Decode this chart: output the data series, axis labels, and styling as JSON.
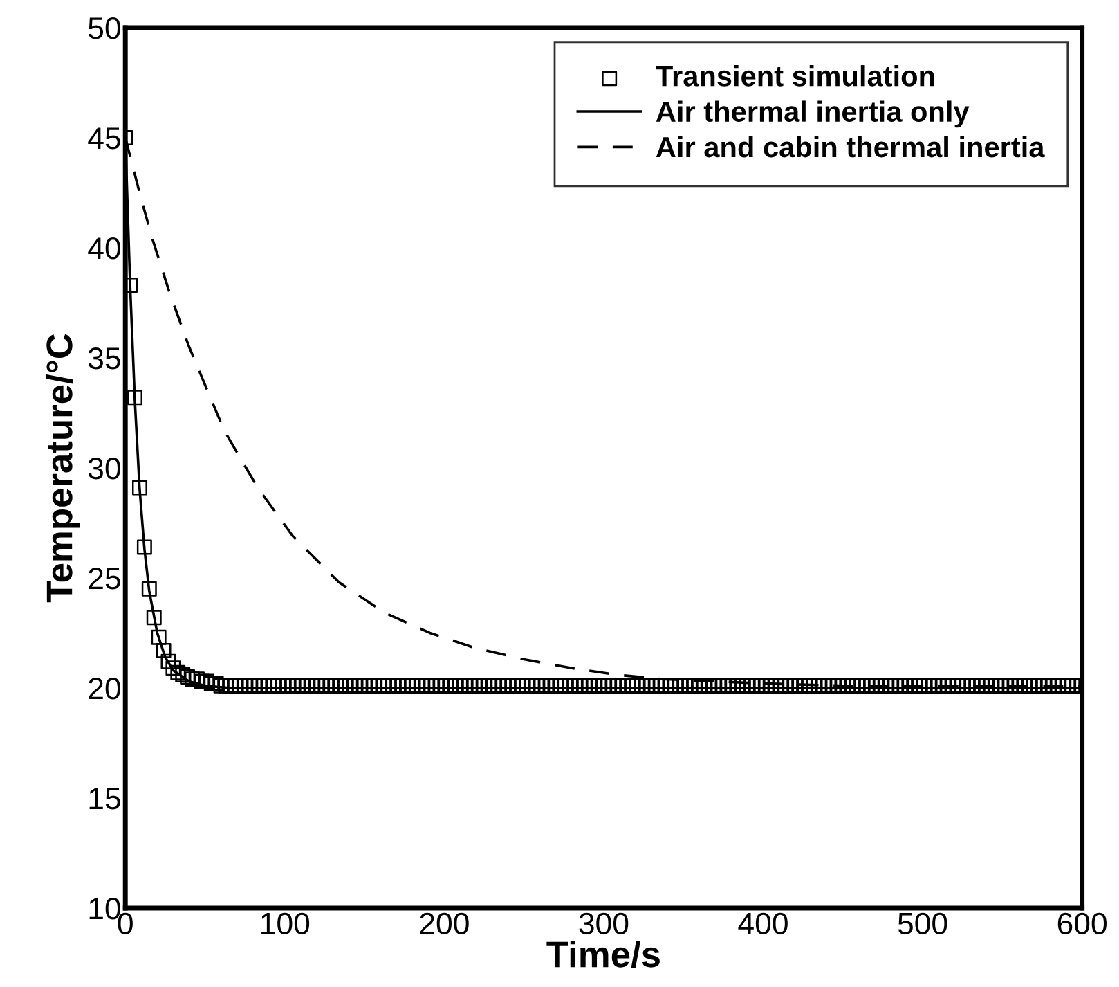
{
  "chart_data": {
    "type": "line",
    "xlabel": "Time/s",
    "ylabel": "Temperature/°C",
    "xlim": [
      0,
      600
    ],
    "xticks": [
      0,
      100,
      200,
      300,
      400,
      500,
      600
    ],
    "ylim": [
      10,
      50
    ],
    "yticks": [
      10,
      15,
      20,
      25,
      30,
      35,
      40,
      45,
      50
    ],
    "grid": false,
    "legend": "top right",
    "series": [
      {
        "name": "Transient simulation",
        "type": "scatter",
        "marker": "square",
        "color": "#000000",
        "x": [
          0,
          3,
          6,
          9,
          12,
          15,
          18,
          21,
          24,
          27,
          30,
          33,
          36,
          39,
          42,
          45,
          48,
          51,
          54,
          57,
          60,
          63,
          66,
          69,
          72,
          75,
          78,
          81,
          84,
          87,
          90,
          93,
          96,
          99,
          102,
          105,
          108,
          111,
          114,
          117,
          120,
          123,
          126,
          129,
          132,
          135,
          138,
          141,
          144,
          147,
          150,
          153,
          156,
          159,
          162,
          165,
          168,
          171,
          174,
          177,
          180,
          183,
          186,
          189,
          192,
          195,
          198,
          201,
          204,
          207,
          210,
          213,
          216,
          219,
          222,
          225,
          228,
          231,
          234,
          237,
          240,
          243,
          246,
          249,
          252,
          255,
          258,
          261,
          264,
          267,
          270,
          273,
          276,
          279,
          282,
          285,
          288,
          291,
          294,
          297,
          300,
          303,
          306,
          309,
          312,
          315,
          318,
          321,
          324,
          327,
          330,
          333,
          336,
          339,
          342,
          345,
          348,
          351,
          354,
          357,
          360,
          363,
          366,
          369,
          372,
          375,
          378,
          381,
          384,
          387,
          390,
          393,
          396,
          399,
          402,
          405,
          408,
          411,
          414,
          417,
          420,
          423,
          426,
          429,
          432,
          435,
          438,
          441,
          444,
          447,
          450,
          453,
          456,
          459,
          462,
          465,
          468,
          471,
          474,
          477,
          480,
          483,
          486,
          489,
          492,
          495,
          498,
          501,
          504,
          507,
          510,
          513,
          516,
          519,
          522,
          525,
          528,
          531,
          534,
          537,
          540,
          543,
          546,
          549,
          552,
          555,
          558,
          561,
          564,
          567,
          570,
          573,
          576,
          579,
          582,
          585,
          588,
          591,
          594,
          597,
          600
        ],
        "values": [
          45,
          38.3,
          33.2,
          29.1,
          26.4,
          24.5,
          23.2,
          22.3,
          21.7,
          21.2,
          20.9,
          20.7,
          20.6,
          20.5,
          20.4,
          20.4,
          20.3,
          20.3,
          20.2,
          20.2,
          20.1,
          20.1,
          20.1,
          20.1,
          20.1,
          20.1,
          20.1,
          20.1,
          20.1,
          20.1,
          20.1,
          20.1,
          20.1,
          20.1,
          20.1,
          20.1,
          20.1,
          20.1,
          20.1,
          20.1,
          20.1,
          20.1,
          20.1,
          20.1,
          20.1,
          20.1,
          20.1,
          20.1,
          20.1,
          20.1,
          20.1,
          20.1,
          20.1,
          20.1,
          20.1,
          20.1,
          20.1,
          20.1,
          20.1,
          20.1,
          20.1,
          20.1,
          20.1,
          20.1,
          20.1,
          20.1,
          20.1,
          20.1,
          20.1,
          20.1,
          20.1,
          20.1,
          20.1,
          20.1,
          20.1,
          20.1,
          20.1,
          20.1,
          20.1,
          20.1,
          20.1,
          20.1,
          20.1,
          20.1,
          20.1,
          20.1,
          20.1,
          20.1,
          20.1,
          20.1,
          20.1,
          20.1,
          20.1,
          20.1,
          20.1,
          20.1,
          20.1,
          20.1,
          20.1,
          20.1,
          20.1,
          20.1,
          20.1,
          20.1,
          20.1,
          20.1,
          20.1,
          20.1,
          20.1,
          20.1,
          20.1,
          20.1,
          20.1,
          20.1,
          20.1,
          20.1,
          20.1,
          20.1,
          20.1,
          20.1,
          20.1,
          20.1,
          20.1,
          20.1,
          20.1,
          20.1,
          20.1,
          20.1,
          20.1,
          20.1,
          20.1,
          20.1,
          20.1,
          20.1,
          20.1,
          20.1,
          20.1,
          20.1,
          20.1,
          20.1,
          20.1,
          20.1,
          20.1,
          20.1,
          20.1,
          20.1,
          20.1,
          20.1,
          20.1,
          20.1,
          20.1,
          20.1,
          20.1,
          20.1,
          20.1,
          20.1,
          20.1,
          20.1,
          20.1,
          20.1,
          20.1,
          20.1,
          20.1,
          20.1,
          20.1,
          20.1,
          20.1,
          20.1,
          20.1,
          20.1,
          20.1,
          20.1,
          20.1,
          20.1,
          20.1,
          20.1,
          20.1,
          20.1,
          20.1,
          20.1,
          20.1,
          20.1,
          20.1,
          20.1,
          20.1,
          20.1,
          20.1,
          20.1,
          20.1,
          20.1,
          20.1,
          20.1,
          20.1,
          20.1,
          20.1,
          20.1,
          20.1,
          20.1,
          20.1,
          20.1,
          20.1
        ]
      },
      {
        "name": "Air thermal inertia only",
        "type": "line",
        "line_style": "solid",
        "color": "#000000",
        "x": [
          0,
          3,
          6,
          9,
          12,
          15,
          20,
          25,
          30,
          40,
          50,
          65,
          600
        ],
        "values": [
          45,
          38.3,
          33,
          29,
          26.3,
          24.4,
          22.5,
          21.4,
          20.8,
          20.3,
          20.1,
          20,
          20
        ]
      },
      {
        "name": "Air and cabin thermal inertia",
        "type": "line",
        "line_style": "dashed",
        "color": "#000000",
        "x": [
          0,
          5,
          10,
          17,
          28,
          40,
          51,
          62,
          83,
          105,
          134,
          163,
          191,
          220,
          250,
          280,
          308,
          337,
          370,
          400,
          450,
          500,
          600
        ],
        "values": [
          45,
          43.6,
          42.2,
          40.4,
          37.9,
          35.5,
          33.6,
          31.7,
          29.1,
          26.9,
          24.8,
          23.4,
          22.5,
          21.8,
          21.3,
          20.9,
          20.6,
          20.4,
          20.3,
          20.2,
          20.1,
          20.1,
          20.1
        ]
      }
    ]
  }
}
